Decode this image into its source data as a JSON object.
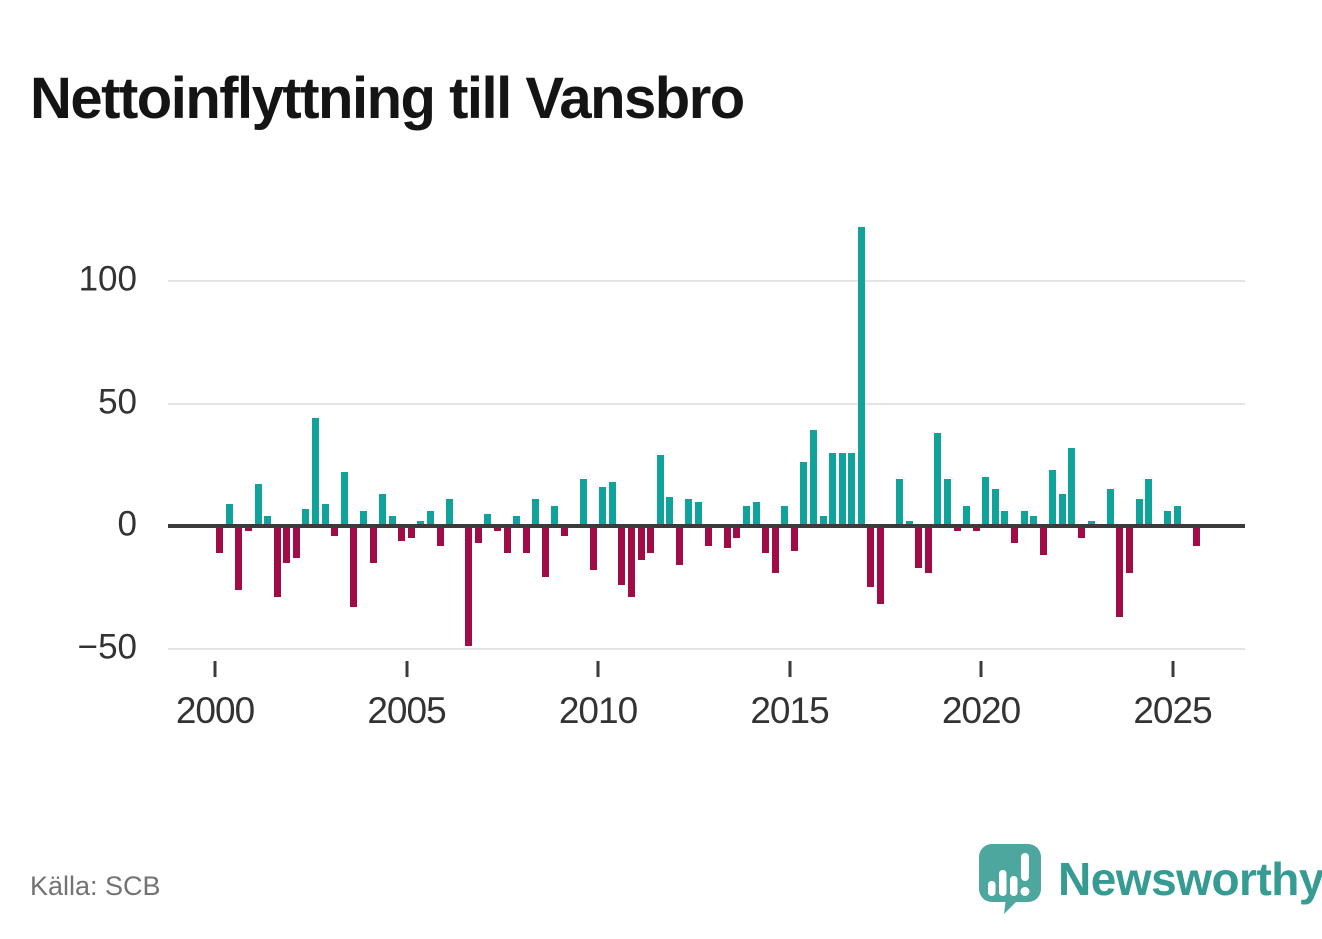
{
  "page": {
    "title": "Nettoinflyttning till Vansbro",
    "source": "Källa: SCB"
  },
  "brand": {
    "name": "Newsworthy",
    "icon": "speech-bubble-bar-chart-exclamation-icon",
    "icon_color": "#4da79e",
    "wordmark_color": "#359b93"
  },
  "colors": {
    "positive": "#10a39b",
    "negative": "#a00c46",
    "axis": "#3b3b3b",
    "grid": "#e3e3e3",
    "tick_text": "#333333",
    "muted_text": "#737373",
    "title_text": "#141414"
  },
  "chart_data": {
    "type": "bar",
    "title": "Nettoinflyttning till Vansbro",
    "subtitle": "",
    "xlabel": "",
    "ylabel": "",
    "frequency": "quarterly",
    "x_start": {
      "year": 2000,
      "quarter": 1
    },
    "x_end": {
      "year": 2025,
      "quarter": 3
    },
    "x_tick_labels": [
      "2000",
      "2005",
      "2010",
      "2015",
      "2020",
      "2025"
    ],
    "y_ticks": [
      100,
      50,
      0,
      -50
    ],
    "y_tick_labels": [
      "100",
      "50",
      "0",
      "−50"
    ],
    "ylim": [
      -55,
      130
    ],
    "grid": "horizontal",
    "legend": "none",
    "positive_color": "#10a39b",
    "negative_color": "#a00c46",
    "values": [
      -11,
      9,
      -26,
      -2,
      17,
      4,
      -29,
      -15,
      -13,
      7,
      44,
      9,
      -4,
      22,
      -33,
      6,
      -15,
      13,
      4,
      -6,
      -5,
      2,
      6,
      -8,
      11,
      -1,
      -49,
      -7,
      5,
      -2,
      -11,
      4,
      -11,
      11,
      -21,
      8,
      -4,
      0,
      19,
      -18,
      16,
      18,
      -24,
      -29,
      -14,
      -11,
      29,
      12,
      -16,
      11,
      10,
      -8,
      0,
      -9,
      -5,
      8,
      10,
      -11,
      -19,
      8,
      -10,
      26,
      39,
      4,
      30,
      30,
      30,
      122,
      -25,
      -32,
      0,
      19,
      2,
      -17,
      -19,
      38,
      19,
      -2,
      8,
      -2,
      20,
      15,
      6,
      -7,
      6,
      4,
      -12,
      23,
      13,
      32,
      -5,
      2,
      0,
      15,
      -37,
      -19,
      11,
      19,
      0,
      6,
      8,
      0,
      -8
    ]
  }
}
